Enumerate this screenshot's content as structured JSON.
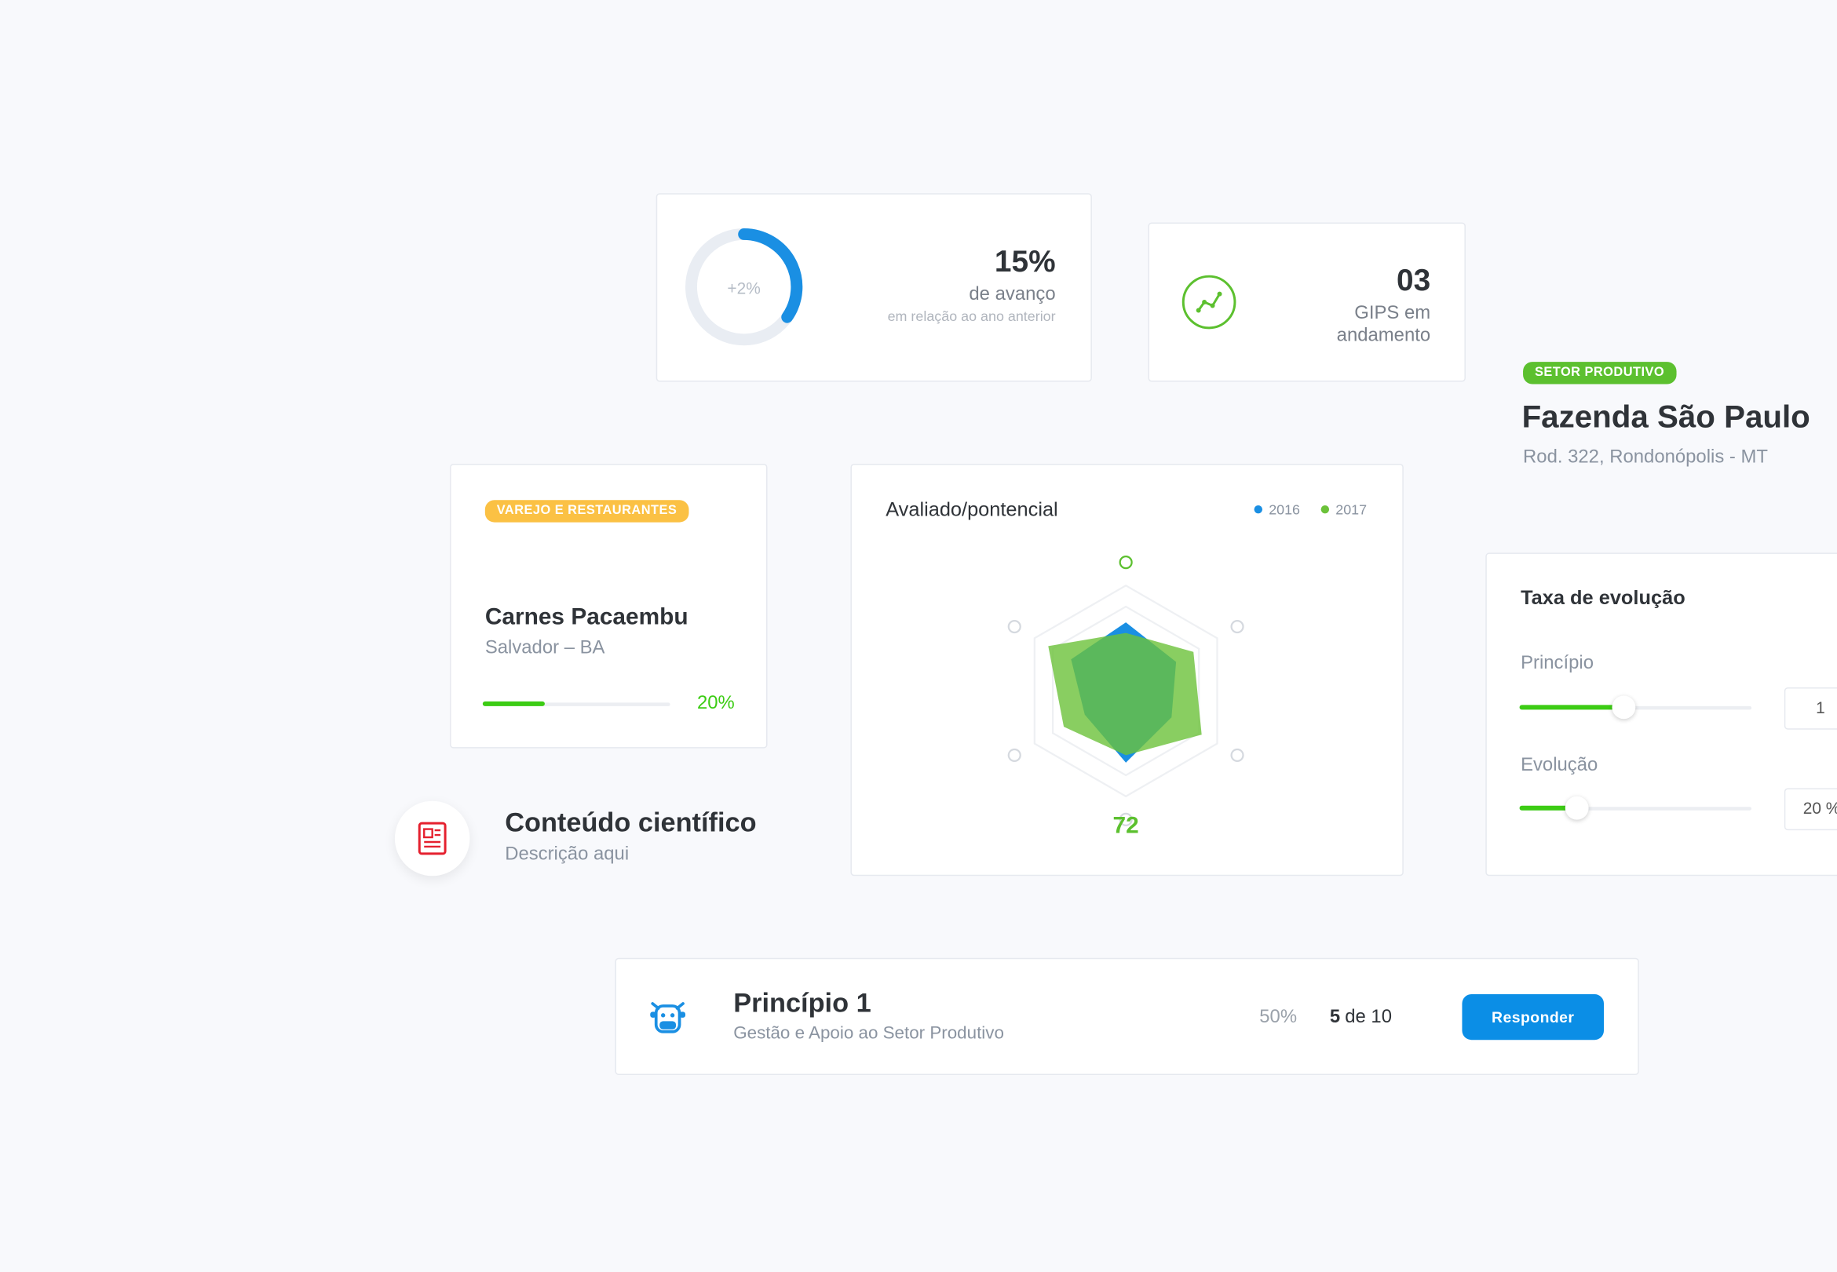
{
  "progress_card": {
    "value": "15%",
    "change": "+2%",
    "label": "de avanço",
    "sublabel": "em relação ao ano anterior"
  },
  "gips_card": {
    "value": "03",
    "label": "GIPS em andamento"
  },
  "farm": {
    "tag": "SETOR PRODUTIVO",
    "name": "Fazenda São Paulo",
    "address": "Rod. 322, Rondonópolis - MT"
  },
  "company_card": {
    "tag": "VAREJO E RESTAURANTES",
    "name": "Carnes Pacaembu",
    "location": "Salvador – BA",
    "percent": "20%"
  },
  "content": {
    "title": "Conteúdo científico",
    "description": "Descrição aqui"
  },
  "chart_data": {
    "type": "radar",
    "title": "Avaliado/pontencial",
    "rlim": [
      0,
      100
    ],
    "series": [
      {
        "name": "2016",
        "color": "#1a8fe3",
        "values": [
          65,
          55,
          50,
          68,
          45,
          60
        ]
      },
      {
        "name": "2017",
        "color": "#6cc23a",
        "values": [
          55,
          74,
          83,
          61,
          68,
          85
        ]
      }
    ],
    "score": 72,
    "score_color": "#5cc02f"
  },
  "evolution": {
    "title": "Taxa de evolução",
    "fields": [
      {
        "label": "Princípio",
        "value": "1"
      },
      {
        "label": "Evolução",
        "value": "20 %"
      }
    ]
  },
  "principle": {
    "title": "Princípio 1",
    "subtitle": "Gestão e Apoio ao Setor Produtivo",
    "percent": "50%",
    "count": "5",
    "count_of": "de 10",
    "button": "Responder"
  }
}
